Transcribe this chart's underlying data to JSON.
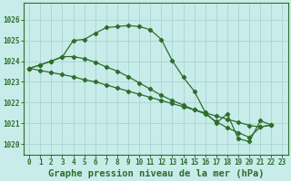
{
  "title": "Graphe pression niveau de la mer (hPa)",
  "background_color": "#c8ece9",
  "grid_color": "#aad4d0",
  "line_color": "#2d6e2d",
  "x_labels": [
    "0",
    "1",
    "2",
    "3",
    "4",
    "5",
    "6",
    "7",
    "8",
    "9",
    "10",
    "11",
    "12",
    "13",
    "14",
    "15",
    "16",
    "17",
    "18",
    "19",
    "20",
    "21",
    "22",
    "23"
  ],
  "ylim": [
    1019.5,
    1026.8
  ],
  "yticks": [
    1020,
    1021,
    1022,
    1023,
    1024,
    1025,
    1026
  ],
  "line1_x": [
    0,
    1,
    2,
    3,
    4,
    5,
    6,
    7,
    8,
    9,
    10,
    11,
    12,
    13,
    14,
    15,
    16,
    17,
    18,
    19,
    20,
    21,
    22
  ],
  "line1_y": [
    1023.65,
    1023.82,
    1024.0,
    1024.2,
    1025.0,
    1025.05,
    1025.35,
    1025.62,
    1025.67,
    1025.72,
    1025.67,
    1025.52,
    1025.05,
    1024.02,
    1023.22,
    1022.55,
    1021.52,
    1021.02,
    1021.45,
    1020.25,
    1020.12,
    1021.12,
    1020.92
  ],
  "line2_x": [
    0,
    1,
    2,
    3,
    4,
    5,
    6,
    7,
    8,
    9,
    10,
    11,
    12,
    13,
    14,
    15,
    16,
    17,
    18,
    19,
    20,
    21,
    22
  ],
  "line2_y": [
    1023.65,
    1023.55,
    1023.45,
    1023.35,
    1023.25,
    1023.1,
    1023.0,
    1022.85,
    1022.7,
    1022.55,
    1022.4,
    1022.25,
    1022.1,
    1021.95,
    1021.8,
    1021.65,
    1021.5,
    1021.35,
    1021.2,
    1021.05,
    1020.9,
    1020.82,
    1020.92
  ],
  "line3_x": [
    0,
    1,
    2,
    3,
    4,
    5,
    6,
    7,
    8,
    9,
    10,
    11,
    12,
    13,
    14,
    15,
    16,
    17,
    18,
    19,
    20,
    21,
    22
  ],
  "line3_y": [
    1023.65,
    1023.82,
    1024.0,
    1024.22,
    1024.22,
    1024.12,
    1023.95,
    1023.72,
    1023.52,
    1023.25,
    1022.95,
    1022.65,
    1022.35,
    1022.1,
    1021.88,
    1021.65,
    1021.45,
    1021.08,
    1020.78,
    1020.55,
    1020.32,
    1020.82,
    1020.92
  ],
  "title_fontsize": 7.5,
  "tick_fontsize": 5.5,
  "marker_size": 2.2,
  "line_width": 0.9
}
